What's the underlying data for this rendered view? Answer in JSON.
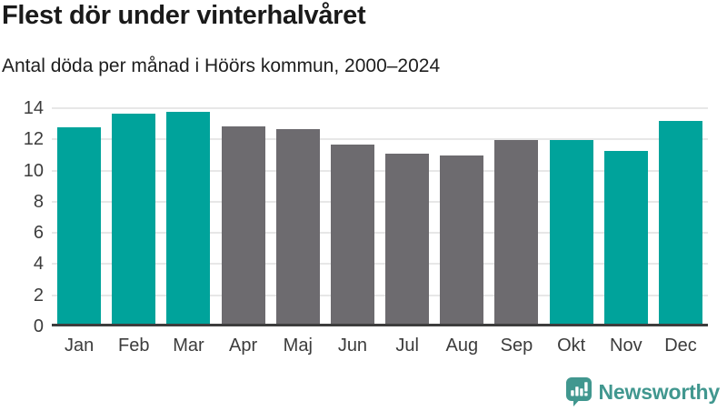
{
  "title": "Flest dör under vinterhalvåret",
  "subtitle": "Antal döda per månad i Höörs kommun, 2000–2024",
  "brand": {
    "name": "Newsworthy",
    "color": "#41978f"
  },
  "colors": {
    "highlight": "#00a39b",
    "muted": "#6d6b6f",
    "gridline": "#e7e7e7",
    "axis": "#3d3d3d",
    "title_text": "#1a1a1a",
    "tick_text": "#3c3c3c"
  },
  "chart_data": {
    "type": "bar",
    "title": "Flest dör under vinterhalvåret",
    "subtitle": "Antal döda per månad i Höörs kommun, 2000–2024",
    "categories": [
      "Jan",
      "Feb",
      "Mar",
      "Apr",
      "Maj",
      "Jun",
      "Jul",
      "Aug",
      "Sep",
      "Okt",
      "Nov",
      "Dec"
    ],
    "values": [
      12.7,
      13.6,
      13.7,
      12.8,
      12.6,
      11.6,
      11.0,
      10.9,
      11.9,
      11.9,
      11.2,
      13.1
    ],
    "bar_colors": [
      "highlight",
      "highlight",
      "highlight",
      "muted",
      "muted",
      "muted",
      "muted",
      "muted",
      "muted",
      "highlight",
      "highlight",
      "highlight"
    ],
    "xlabel": "",
    "ylabel": "",
    "ylim": [
      0,
      14
    ],
    "yticks": [
      0,
      2,
      4,
      6,
      8,
      10,
      12,
      14
    ],
    "grid": true,
    "legend": false,
    "highlight_meaning": "winter-half-year months in teal, summer-half-year months in gray"
  }
}
